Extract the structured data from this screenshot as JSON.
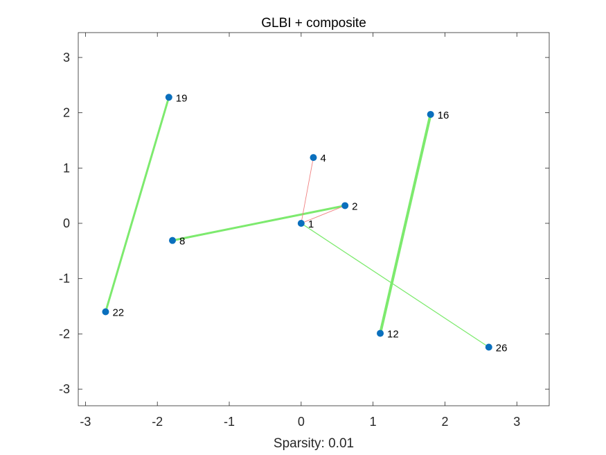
{
  "chart_data": {
    "type": "scatter",
    "title": "GLBI + composite",
    "xlabel": "Sparsity: 0.01",
    "ylabel": "",
    "xlim": [
      -3.1,
      3.45
    ],
    "ylim": [
      -3.3,
      3.45
    ],
    "xticks": [
      -3,
      -2,
      -1,
      0,
      1,
      2,
      3
    ],
    "yticks": [
      -3,
      -2,
      -1,
      0,
      1,
      2,
      3
    ],
    "xtick_labels": [
      "-3",
      "-2",
      "-1",
      "0",
      "1",
      "2",
      "3"
    ],
    "ytick_labels": [
      "-3",
      "-2",
      "-1",
      "0",
      "1",
      "2",
      "3"
    ],
    "grid": false,
    "nodes": [
      {
        "label": "1",
        "x": 0.0,
        "y": 0.0
      },
      {
        "label": "2",
        "x": 0.61,
        "y": 0.32
      },
      {
        "label": "4",
        "x": 0.17,
        "y": 1.19
      },
      {
        "label": "8",
        "x": -1.79,
        "y": -0.31
      },
      {
        "label": "12",
        "x": 1.1,
        "y": -1.99
      },
      {
        "label": "16",
        "x": 1.8,
        "y": 1.97
      },
      {
        "label": "19",
        "x": -1.84,
        "y": 2.28
      },
      {
        "label": "22",
        "x": -2.72,
        "y": -1.6
      },
      {
        "label": "26",
        "x": 2.61,
        "y": -2.24
      }
    ],
    "edges": [
      {
        "from": "19",
        "to": "22",
        "color": "#7dea6e",
        "weight": 3
      },
      {
        "from": "8",
        "to": "2",
        "color": "#7dea6e",
        "weight": 3
      },
      {
        "from": "16",
        "to": "12",
        "color": "#7dea6e",
        "weight": 4
      },
      {
        "from": "1",
        "to": "26",
        "color": "#7dea6e",
        "weight": 1.3
      },
      {
        "from": "1",
        "to": "4",
        "color": "#f08080",
        "weight": 0.9
      },
      {
        "from": "1",
        "to": "2",
        "color": "#f08080",
        "weight": 0.9
      }
    ],
    "marker_color": "#0a6fbd"
  }
}
